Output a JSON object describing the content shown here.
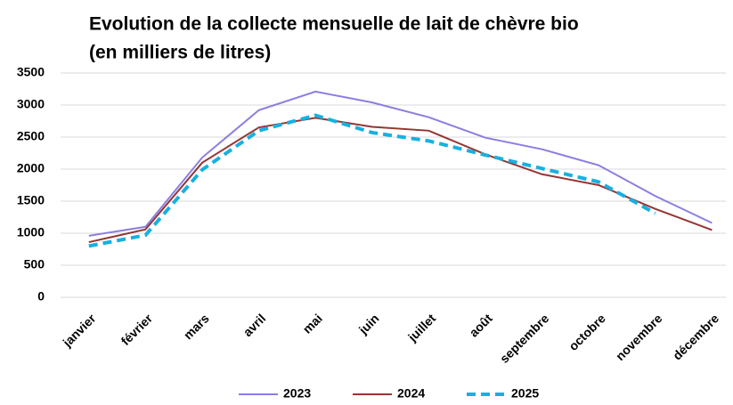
{
  "chart_data": {
    "type": "line",
    "title": [
      "Evolution de la collecte mensuelle de lait de chèvre bio",
      "(en milliers de litres)"
    ],
    "categories": [
      "janvier",
      "février",
      "mars",
      "avril",
      "mai",
      "juin",
      "juillet",
      "août",
      "septembre",
      "octobre",
      "novembre",
      "décembre"
    ],
    "series": [
      {
        "name": "2023",
        "color": "#8b7ee0",
        "dashed": false,
        "values": [
          960,
          1100,
          2180,
          2920,
          3210,
          3040,
          2810,
          2490,
          2310,
          2060,
          1580,
          1160
        ]
      },
      {
        "name": "2024",
        "color": "#943634",
        "dashed": false,
        "values": [
          860,
          1060,
          2100,
          2650,
          2800,
          2660,
          2600,
          2230,
          1920,
          1750,
          1380,
          1050
        ]
      },
      {
        "name": "2025",
        "color": "#17b0e0",
        "dashed": true,
        "values": [
          800,
          970,
          1990,
          2600,
          2840,
          2570,
          2440,
          2220,
          2010,
          1800,
          1310,
          null
        ]
      }
    ],
    "ylim": [
      0,
      3500
    ],
    "yticks": [
      0,
      500,
      1000,
      1500,
      2000,
      2500,
      3000,
      3500
    ],
    "grid": true,
    "legend": "bottom"
  }
}
